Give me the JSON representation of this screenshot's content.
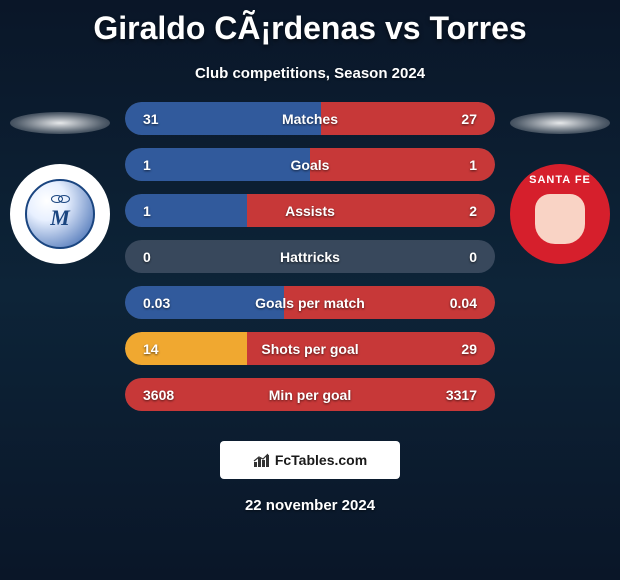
{
  "header": {
    "title": "Giraldo CÃ¡rdenas vs Torres",
    "subtitle": "Club competitions, Season 2024"
  },
  "teams": {
    "left": {
      "name": "millonarios",
      "badge_letter": "M",
      "primary_color": "#2c5ba8",
      "border_color": "#1a4580"
    },
    "right": {
      "name": "santa-fe",
      "badge_text": "SANTA FE",
      "primary_color": "#d61f2c"
    }
  },
  "stats": [
    {
      "label": "Matches",
      "left_value": "31",
      "right_value": "27",
      "left_fill_pct": 53,
      "right_fill_pct": 47,
      "left_color": "#315a9c",
      "right_color": "#c73838"
    },
    {
      "label": "Goals",
      "left_value": "1",
      "right_value": "1",
      "left_fill_pct": 50,
      "right_fill_pct": 50,
      "left_color": "#315a9c",
      "right_color": "#c73838"
    },
    {
      "label": "Assists",
      "left_value": "1",
      "right_value": "2",
      "left_fill_pct": 33,
      "right_fill_pct": 67,
      "left_color": "#315a9c",
      "right_color": "#c73838"
    },
    {
      "label": "Hattricks",
      "left_value": "0",
      "right_value": "0",
      "left_fill_pct": 0,
      "right_fill_pct": 0,
      "left_color": "#315a9c",
      "right_color": "#c73838"
    },
    {
      "label": "Goals per match",
      "left_value": "0.03",
      "right_value": "0.04",
      "left_fill_pct": 43,
      "right_fill_pct": 57,
      "left_color": "#315a9c",
      "right_color": "#c73838"
    },
    {
      "label": "Shots per goal",
      "left_value": "14",
      "right_value": "29",
      "left_fill_pct": 33,
      "right_fill_pct": 67,
      "left_color": "#f0a830",
      "right_color": "#c73838"
    },
    {
      "label": "Min per goal",
      "left_value": "3608",
      "right_value": "3317",
      "left_fill_pct": 52,
      "right_fill_pct": 48,
      "left_color": "#c73838",
      "right_color": "#c73838"
    }
  ],
  "footer": {
    "brand": "FcTables.com",
    "date": "22 november 2024"
  },
  "styling": {
    "bg_gradient_top": "#0a1628",
    "bg_gradient_mid": "#0d2438",
    "title_color": "#ffffff",
    "title_fontsize": 32,
    "subtitle_fontsize": 15,
    "stat_neutral_bg": "rgba(100,110,130,0.5)",
    "stat_row_height": 33,
    "stat_row_radius": 17
  }
}
